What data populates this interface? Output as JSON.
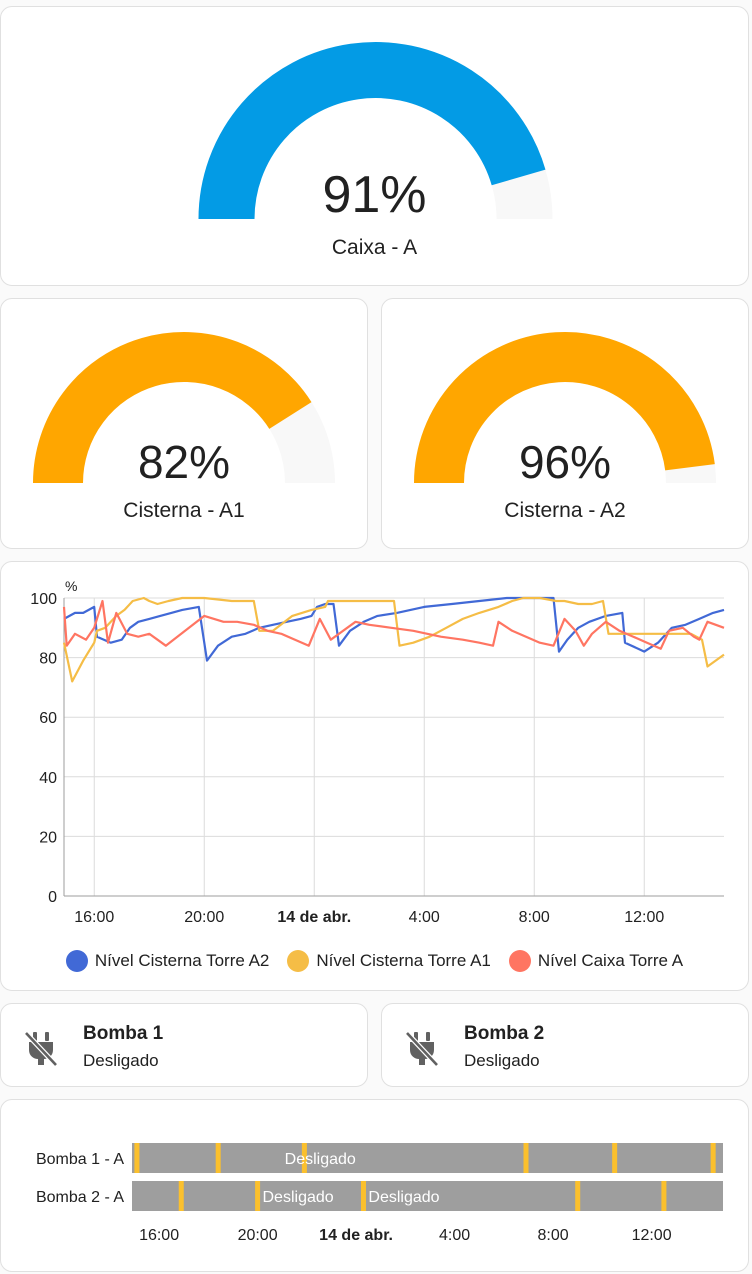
{
  "gauges": {
    "caixa": {
      "value": 91,
      "value_label": "91%",
      "name": "Caixa - A",
      "color": "#039be5"
    },
    "cisterna_a1": {
      "value": 82,
      "value_label": "82%",
      "name": "Cisterna - A1",
      "color": "#ffa600"
    },
    "cisterna_a2": {
      "value": 96,
      "value_label": "96%",
      "name": "Cisterna - A2",
      "color": "#ffa600"
    },
    "track_color": "#f8f8f8"
  },
  "chart_data": {
    "type": "line",
    "ylabel": "%",
    "ylim": [
      0,
      100
    ],
    "yticks": [
      "0",
      "20",
      "40",
      "60",
      "80",
      "100"
    ],
    "x_range_hours": [
      14.9,
      38.9
    ],
    "xticks": [
      {
        "hour": 16,
        "label": "16:00"
      },
      {
        "hour": 20,
        "label": "20:00"
      },
      {
        "hour": 24,
        "label": "14 de abr."
      },
      {
        "hour": 28,
        "label": "4:00"
      },
      {
        "hour": 32,
        "label": "8:00"
      },
      {
        "hour": 36,
        "label": "12:00"
      }
    ],
    "series": [
      {
        "name": "Nível Cisterna Torre A2",
        "color": "#4169d6",
        "points": [
          [
            14.9,
            93
          ],
          [
            15.3,
            95
          ],
          [
            15.6,
            95
          ],
          [
            16,
            97
          ],
          [
            16.1,
            87
          ],
          [
            16.6,
            85
          ],
          [
            17,
            86
          ],
          [
            17.3,
            90
          ],
          [
            17.6,
            92
          ],
          [
            18,
            93
          ],
          [
            18.4,
            94
          ],
          [
            18.8,
            95
          ],
          [
            19.2,
            96
          ],
          [
            19.8,
            97
          ],
          [
            20.1,
            79
          ],
          [
            20.5,
            84
          ],
          [
            21,
            87
          ],
          [
            21.5,
            88
          ],
          [
            22,
            90
          ],
          [
            22.5,
            91
          ],
          [
            23,
            92
          ],
          [
            23.5,
            93
          ],
          [
            23.9,
            94
          ],
          [
            24.1,
            97
          ],
          [
            24.4,
            98
          ],
          [
            24.7,
            98
          ],
          [
            24.9,
            84
          ],
          [
            25.3,
            89
          ],
          [
            25.8,
            92
          ],
          [
            26.3,
            94
          ],
          [
            27,
            95
          ],
          [
            28,
            97
          ],
          [
            29,
            98
          ],
          [
            30,
            99
          ],
          [
            31,
            100
          ],
          [
            32,
            100
          ],
          [
            32.7,
            100
          ],
          [
            32.9,
            82
          ],
          [
            33.2,
            86
          ],
          [
            33.6,
            90
          ],
          [
            34,
            92
          ],
          [
            34.6,
            94
          ],
          [
            35.2,
            95
          ],
          [
            35.3,
            85
          ],
          [
            36,
            82
          ],
          [
            36.5,
            85
          ],
          [
            37,
            90
          ],
          [
            37.5,
            91
          ],
          [
            38,
            93
          ],
          [
            38.5,
            95
          ],
          [
            38.9,
            96
          ]
        ]
      },
      {
        "name": "Nível Cisterna Torre A1",
        "color": "#f5bd46",
        "points": [
          [
            14.9,
            85
          ],
          [
            15.2,
            72
          ],
          [
            15.6,
            79
          ],
          [
            16,
            85
          ],
          [
            16.1,
            89
          ],
          [
            16.4,
            90
          ],
          [
            16.8,
            94
          ],
          [
            17.1,
            96
          ],
          [
            17.4,
            99
          ],
          [
            17.8,
            100
          ],
          [
            18,
            99
          ],
          [
            18.3,
            98
          ],
          [
            18.7,
            99
          ],
          [
            19.2,
            100
          ],
          [
            20,
            100
          ],
          [
            21,
            99
          ],
          [
            21.8,
            99
          ],
          [
            22,
            89
          ],
          [
            22.5,
            89
          ],
          [
            23.2,
            94
          ],
          [
            23.9,
            96
          ],
          [
            24.4,
            97
          ],
          [
            24.5,
            99
          ],
          [
            25,
            99
          ],
          [
            26,
            99
          ],
          [
            26.9,
            99
          ],
          [
            27.1,
            84
          ],
          [
            27.6,
            85
          ],
          [
            28.2,
            87
          ],
          [
            28.8,
            90
          ],
          [
            29.4,
            93
          ],
          [
            30,
            95
          ],
          [
            30.7,
            97
          ],
          [
            31.2,
            99
          ],
          [
            31.6,
            100
          ],
          [
            32.2,
            100
          ],
          [
            32.8,
            99
          ],
          [
            33.1,
            99
          ],
          [
            33.6,
            98
          ],
          [
            34.1,
            98
          ],
          [
            34.5,
            99
          ],
          [
            34.7,
            88
          ],
          [
            35.3,
            88
          ],
          [
            36,
            88
          ],
          [
            36.8,
            88
          ],
          [
            37.4,
            88
          ],
          [
            37.7,
            88
          ],
          [
            38.1,
            86
          ],
          [
            38.3,
            77
          ],
          [
            38.9,
            81
          ]
        ]
      },
      {
        "name": "Nível Caixa Torre A",
        "color": "#ff7562",
        "points": [
          [
            14.9,
            97
          ],
          [
            15,
            84
          ],
          [
            15.3,
            88
          ],
          [
            15.7,
            86
          ],
          [
            16,
            90
          ],
          [
            16.3,
            99
          ],
          [
            16.5,
            85
          ],
          [
            16.8,
            95
          ],
          [
            17.2,
            88
          ],
          [
            17.6,
            87
          ],
          [
            18,
            88
          ],
          [
            18.3,
            86
          ],
          [
            18.6,
            84
          ],
          [
            20,
            94
          ],
          [
            20.7,
            92
          ],
          [
            21.2,
            92
          ],
          [
            21.8,
            91
          ],
          [
            22.3,
            89
          ],
          [
            22.8,
            88
          ],
          [
            23.3,
            86
          ],
          [
            23.8,
            84
          ],
          [
            24.2,
            93
          ],
          [
            24.6,
            86
          ],
          [
            25.5,
            92
          ],
          [
            26,
            91
          ],
          [
            26.8,
            90
          ],
          [
            27.6,
            89
          ],
          [
            28.6,
            87
          ],
          [
            29.4,
            86
          ],
          [
            30,
            85
          ],
          [
            30.5,
            84
          ],
          [
            30.7,
            92
          ],
          [
            31.2,
            89
          ],
          [
            31.7,
            87
          ],
          [
            32.2,
            85
          ],
          [
            32.7,
            84
          ],
          [
            33.1,
            93
          ],
          [
            33.5,
            89
          ],
          [
            33.8,
            84
          ],
          [
            34.1,
            88
          ],
          [
            34.6,
            92
          ],
          [
            35.1,
            89
          ],
          [
            35.6,
            87
          ],
          [
            36.1,
            85
          ],
          [
            36.6,
            83
          ],
          [
            36.9,
            89
          ],
          [
            37.4,
            90
          ],
          [
            37.8,
            87
          ],
          [
            38,
            86
          ],
          [
            38.3,
            92
          ],
          [
            38.6,
            91
          ],
          [
            38.9,
            90
          ]
        ]
      }
    ]
  },
  "entities": {
    "bomba1": {
      "name": "Bomba 1",
      "state": "Desligado",
      "icon": "power-plug-off-icon"
    },
    "bomba2": {
      "name": "Bomba 2",
      "state": "Desligado",
      "icon": "power-plug-off-icon"
    }
  },
  "timeline": {
    "x_range_hours": [
      14.9,
      38.9
    ],
    "xticks": [
      {
        "hour": 16,
        "label": "16:00"
      },
      {
        "hour": 20,
        "label": "20:00"
      },
      {
        "hour": 24,
        "label": "14 de abr."
      },
      {
        "hour": 28,
        "label": "4:00"
      },
      {
        "hour": 32,
        "label": "8:00"
      },
      {
        "hour": 36,
        "label": "12:00"
      }
    ],
    "off_color": "#9e9e9e",
    "on_color": "#fbc02d",
    "rows": [
      {
        "label": "Bomba 1 - A",
        "state_label": "Desligado",
        "state_label_hour": 21.1,
        "on_hours": [
          15.1,
          18.4,
          21.9,
          30.9,
          34.5,
          38.5
        ]
      },
      {
        "label": "Bomba 2 - A",
        "state_labels": [
          {
            "text": "Desligado",
            "hour": 20.2
          },
          {
            "text": "Desligado",
            "hour": 24.5
          }
        ],
        "on_hours": [
          16.9,
          20.0,
          24.3,
          33.0,
          36.5
        ]
      }
    ]
  }
}
